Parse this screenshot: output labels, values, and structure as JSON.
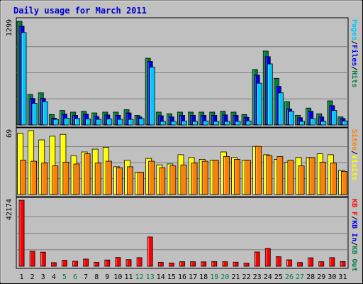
{
  "chart_data": {
    "type": "bar",
    "title": "Daily usage for March 2011",
    "days": [
      "1",
      "2",
      "3",
      "4",
      "5",
      "6",
      "7",
      "8",
      "9",
      "10",
      "11",
      "12",
      "13",
      "14",
      "15",
      "16",
      "17",
      "18",
      "19",
      "20",
      "21",
      "22",
      "23",
      "24",
      "25",
      "26",
      "27",
      "28",
      "29",
      "30",
      "31"
    ],
    "weekend_days": [
      "5",
      "6",
      "12",
      "13",
      "19",
      "20",
      "26",
      "27"
    ],
    "panels": [
      {
        "name": "hits-files-pages",
        "ymax": 1299,
        "ymax_label": "1299",
        "legend": [
          {
            "text": "Pages",
            "color": "#00c8ff"
          },
          {
            "text": "/",
            "color": "#000000"
          },
          {
            "text": "Files",
            "color": "#0000e6"
          },
          {
            "text": "/",
            "color": "#000000"
          },
          {
            "text": "Hits",
            "color": "#008040"
          }
        ],
        "series": [
          {
            "name": "Hits",
            "color": "#008040",
            "values": [
              1290,
              380,
              400,
              130,
              180,
              160,
              170,
              150,
              160,
              160,
              190,
              120,
              830,
              160,
              140,
              160,
              160,
              160,
              160,
              170,
              160,
              130,
              690,
              920,
              580,
              290,
              120,
              210,
              140,
              300,
              100
            ]
          },
          {
            "name": "Files",
            "color": "#0000e6",
            "values": [
              1230,
              330,
              330,
              85,
              135,
              120,
              135,
              105,
              125,
              120,
              150,
              100,
              790,
              115,
              100,
              120,
              120,
              120,
              120,
              125,
              120,
              95,
              620,
              850,
              480,
              200,
              90,
              170,
              100,
              240,
              80
            ]
          },
          {
            "name": "Pages",
            "color": "#00c8ff",
            "values": [
              1150,
              270,
              290,
              70,
              85,
              80,
              75,
              70,
              75,
              70,
              70,
              80,
              720,
              45,
              45,
              50,
              45,
              50,
              45,
              45,
              45,
              50,
              520,
              760,
              400,
              170,
              45,
              80,
              45,
              180,
              50
            ]
          }
        ]
      },
      {
        "name": "visits-sites",
        "ymax": 69,
        "ymax_label": "69",
        "legend": [
          {
            "text": "Sites",
            "color": "#ff8000"
          },
          {
            "text": "/",
            "color": "#000000"
          },
          {
            "text": "Visits",
            "color": "#ffff00"
          }
        ],
        "series": [
          {
            "name": "Visits",
            "color": "#ffff00",
            "values": [
              66,
              69,
              59,
              63,
              65,
              42,
              46,
              49,
              51,
              30,
              37,
              24,
              39,
              32,
              33,
              43,
              40,
              38,
              37,
              46,
              40,
              37,
              52,
              43,
              38,
              35,
              40,
              40,
              44,
              43,
              26
            ]
          },
          {
            "name": "Sites",
            "color": "#ff8000",
            "values": [
              37,
              36,
              34,
              31,
              35,
              33,
              44,
              34,
              36,
              29,
              30,
              24,
              36,
              29,
              31,
              32,
              34,
              36,
              37,
              41,
              38,
              37,
              52,
              42,
              41,
              37,
              31,
              40,
              35,
              34,
              25
            ]
          }
        ]
      },
      {
        "name": "kbytes",
        "ymax": 42174,
        "ymax_label": "42174",
        "legend": [
          {
            "text": "KB F",
            "color": "#ff0000"
          },
          {
            "text": "/",
            "color": "#000000"
          },
          {
            "text": "KB In",
            "color": "#0000e6"
          },
          {
            "text": "/",
            "color": "#000000"
          },
          {
            "text": "KB Out",
            "color": "#008040"
          }
        ],
        "series": [
          {
            "name": "KB F",
            "color": "#ff0000",
            "values": [
              42174,
              9600,
              9000,
              2300,
              3800,
              3200,
              4600,
              2500,
              4000,
              5600,
              4200,
              5500,
              18700,
              2500,
              2100,
              2900,
              2900,
              2800,
              3000,
              2900,
              2600,
              2000,
              9100,
              11400,
              6100,
              4100,
              2400,
              5400,
              2900,
              5500,
              3000
            ]
          }
        ]
      }
    ]
  }
}
